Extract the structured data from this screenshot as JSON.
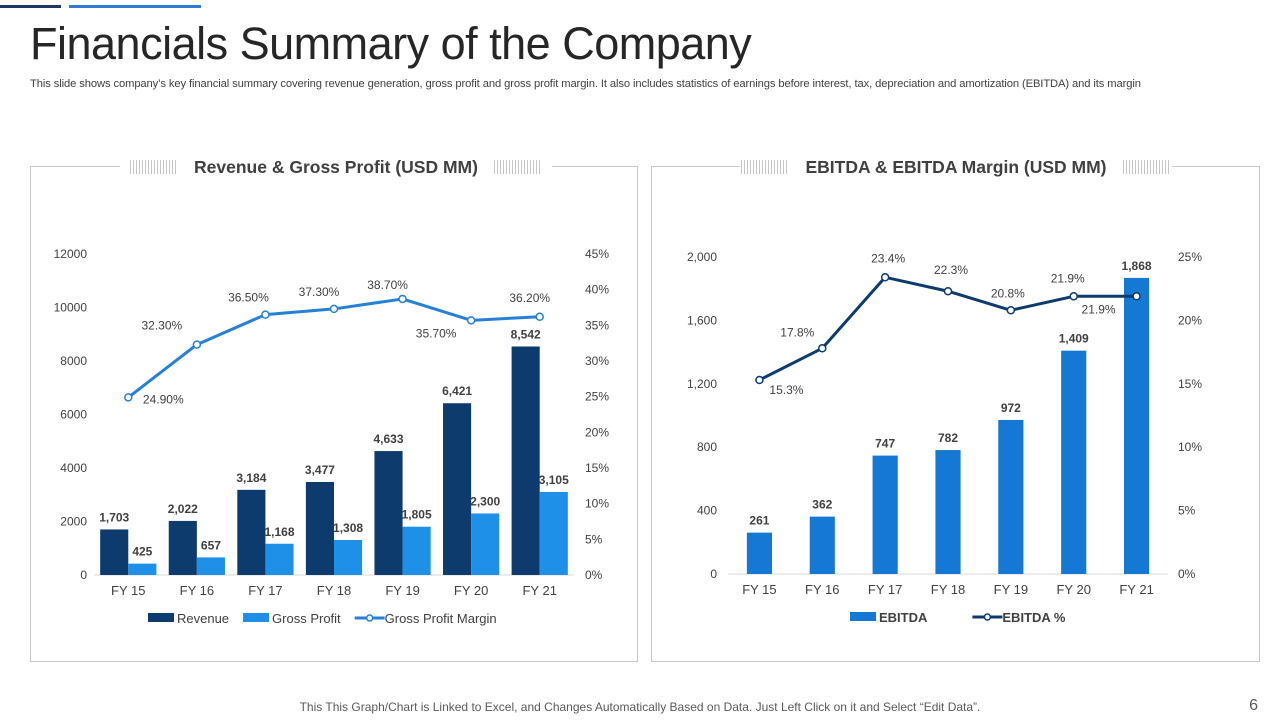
{
  "slide": {
    "title": "Financials Summary of the Company",
    "subtitle": "This slide shows company’s key financial summary covering revenue generation, gross profit and gross profit margin. It also includes statistics of earnings before interest, tax, depreciation and amortization (EBITDA) and its margin",
    "footer": "This This Graph/Chart is Linked to Excel, and Changes Automatically Based on Data. Just Left Click on it and Select “Edit Data”.",
    "page_number": "6",
    "colors": {
      "accent_dark": "#1f3864",
      "accent_light": "#2f7bd6",
      "border": "#c8c8c8"
    }
  },
  "chart_data": [
    {
      "type": "bar",
      "title": "Revenue & Gross Profit (USD MM)",
      "categories": [
        "FY 15",
        "FY 16",
        "FY 17",
        "FY 18",
        "FY 19",
        "FY 20",
        "FY 21"
      ],
      "series": [
        {
          "name": "Revenue",
          "kind": "bar",
          "axis": "left",
          "color": "#0d3b6e",
          "values": [
            1703,
            2022,
            3184,
            3477,
            4633,
            6421,
            8542
          ],
          "labels": [
            "1,703",
            "2,022",
            "3,184",
            "3,477",
            "4,633",
            "6,421",
            "8,542"
          ]
        },
        {
          "name": "Gross Profit",
          "kind": "bar",
          "axis": "left",
          "color": "#1e90e8",
          "values": [
            425,
            657,
            1168,
            1308,
            1805,
            2300,
            3105
          ],
          "labels": [
            "425",
            "657",
            "1,168",
            "1,308",
            "1,805",
            "2,300",
            "3,105"
          ]
        },
        {
          "name": "Gross Profit Margin",
          "kind": "line",
          "axis": "right",
          "color": "#2680d6",
          "values": [
            24.9,
            32.3,
            36.5,
            37.3,
            38.7,
            35.7,
            36.2
          ],
          "labels": [
            "24.90%",
            "32.30%",
            "36.50%",
            "37.30%",
            "38.70%",
            "35.70%",
            "36.20%"
          ]
        }
      ],
      "y_left": {
        "ylim": [
          0,
          12000
        ],
        "ticks": [
          "0",
          "2000",
          "4000",
          "6000",
          "8000",
          "10000",
          "12000"
        ]
      },
      "y_right": {
        "ylim": [
          0,
          45
        ],
        "ticks": [
          "0%",
          "5%",
          "10%",
          "15%",
          "20%",
          "25%",
          "30%",
          "35%",
          "40%",
          "45%"
        ]
      },
      "grid": false,
      "legend": "bottom"
    },
    {
      "type": "bar",
      "title": "EBITDA & EBITDA Margin (USD MM)",
      "categories": [
        "FY 15",
        "FY 16",
        "FY 17",
        "FY 18",
        "FY 19",
        "FY 20",
        "FY 21"
      ],
      "series": [
        {
          "name": "EBITDA",
          "kind": "bar",
          "axis": "left",
          "color": "#1478d4",
          "values": [
            261,
            362,
            747,
            782,
            972,
            1409,
            1868
          ],
          "labels": [
            "261",
            "362",
            "747",
            "782",
            "972",
            "1,409",
            "1,868"
          ]
        },
        {
          "name": "EBITDA %",
          "kind": "line",
          "axis": "right",
          "color": "#0d3b6e",
          "values": [
            15.3,
            17.8,
            23.4,
            22.3,
            20.8,
            21.9,
            21.9
          ],
          "labels": [
            "15.3%",
            "17.8%",
            "23.4%",
            "22.3%",
            "20.8%",
            "21.9%",
            "21.9%"
          ]
        }
      ],
      "y_left": {
        "ylim": [
          0,
          2000
        ],
        "ticks": [
          "0",
          "400",
          "800",
          "1,200",
          "1,600",
          "2,000"
        ]
      },
      "y_right": {
        "ylim": [
          0,
          25
        ],
        "ticks": [
          "0%",
          "5%",
          "10%",
          "15%",
          "20%",
          "25%"
        ]
      },
      "grid": false,
      "legend": "bottom"
    }
  ]
}
